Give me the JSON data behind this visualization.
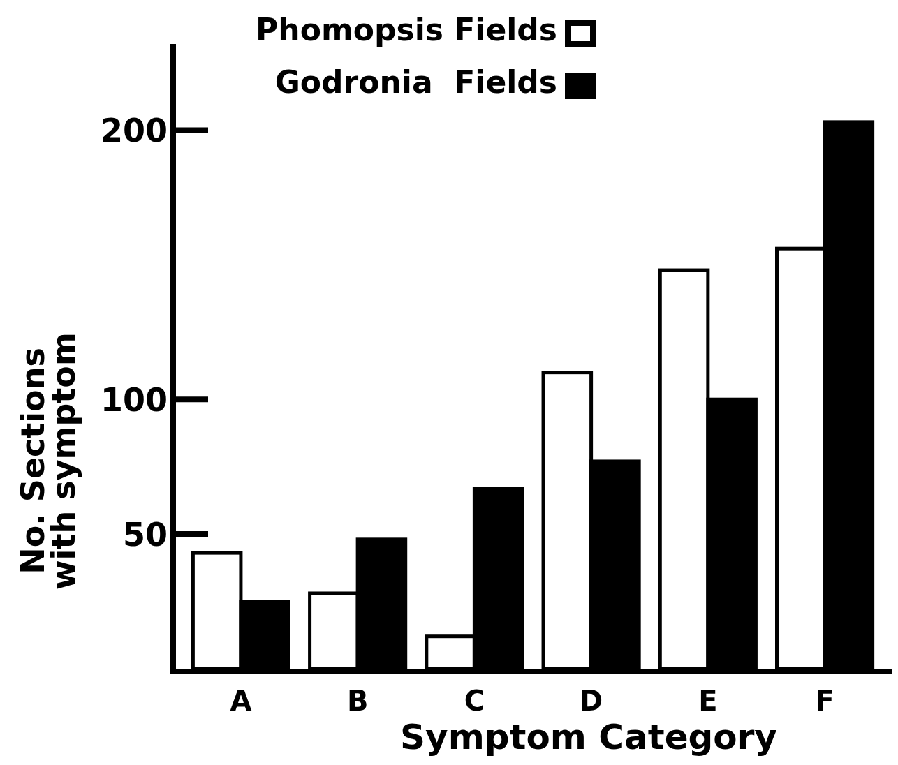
{
  "chart_data": {
    "type": "bar",
    "xlabel": "Symptom Category",
    "ylabel": "No. Sections\nwith symptom",
    "categories": [
      "A",
      "B",
      "C",
      "D",
      "E",
      "F"
    ],
    "series": [
      {
        "name": "Phomopsis Fields",
        "color": "#ffffff",
        "values": [
          43,
          28,
          12,
          110,
          148,
          156
        ]
      },
      {
        "name": "Godronia  Fields",
        "color": "#000000",
        "values": [
          25,
          48,
          67,
          77,
          100,
          203
        ]
      }
    ],
    "ylim": [
      0,
      232
    ],
    "yticks": [
      50,
      100,
      200
    ],
    "grid": false,
    "legend": "top"
  }
}
